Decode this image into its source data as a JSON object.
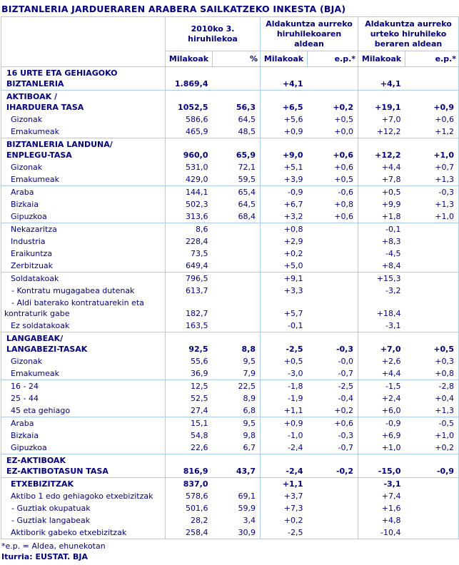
{
  "title": "BIZTANLERIA JARDUERAREN ARABERA SAILKATZEKO INKESTA (BJA)",
  "colors": {
    "text_navy": "#000080",
    "grid_light_blue": "#aaccee",
    "background": "#ffffff"
  },
  "header": {
    "groups": [
      {
        "label": "2010ko 3.\nhiruhilekoa"
      },
      {
        "label": "Aldakuntza aurreko\nhiruhilekoaren aldean"
      },
      {
        "label": "Aldakuntza aurreko\nurteko hiruhileko\nberaren aldean"
      }
    ],
    "subcols": [
      "Milakoak",
      "%",
      "Milakoak",
      "e.p.*",
      "Milakoak",
      "e.p.*"
    ]
  },
  "rows": [
    {
      "label": "16 URTE ETA GEHIAGOKO\nBIZTANLERIA",
      "cls": "section",
      "sep": true,
      "values": [
        "1.869,4",
        "",
        "+4,1",
        "",
        "+4,1",
        ""
      ]
    },
    {
      "label": "AKTIBOAK /\nIHARDUERA TASA",
      "cls": "section",
      "sep": false,
      "values": [
        "1052,5",
        "56,3",
        "+6,5",
        "+0,2",
        "+19,1",
        "+0,9"
      ]
    },
    {
      "label": "Gizonak",
      "cls": "sub",
      "sep": false,
      "values": [
        "586,6",
        "64,5",
        "+5,6",
        "+0,5",
        "+7,0",
        "+0,6"
      ]
    },
    {
      "label": "Emakumeak",
      "cls": "sub",
      "sep": true,
      "values": [
        "465,9",
        "48,5",
        "+0,9",
        "+0,0",
        "+12,2",
        "+1,2"
      ]
    },
    {
      "label": "BIZTANLERIA LANDUNA/\nENPLEGU-TASA",
      "cls": "section",
      "sep": false,
      "values": [
        "960,0",
        "65,9",
        "+9,0",
        "+0,6",
        "+12,2",
        "+1,0"
      ]
    },
    {
      "label": "Gizonak",
      "cls": "sub",
      "sep": false,
      "values": [
        "531,0",
        "72,1",
        "+5,1",
        "+0,6",
        "+4,4",
        "+0,7"
      ]
    },
    {
      "label": "Emakumeak",
      "cls": "sub",
      "sep": true,
      "values": [
        "429,0",
        "59,5",
        "+3,9",
        "+0,5",
        "+7,8",
        "+1,3"
      ]
    },
    {
      "label": "Araba",
      "cls": "sub",
      "sep": false,
      "values": [
        "144,1",
        "65,4",
        "-0,9",
        "-0,6",
        "+0,5",
        "-0,3"
      ]
    },
    {
      "label": "Bizkaia",
      "cls": "sub",
      "sep": false,
      "values": [
        "502,3",
        "64,5",
        "+6,7",
        "+0,8",
        "+9,9",
        "+1,3"
      ]
    },
    {
      "label": "Gipuzkoa",
      "cls": "sub",
      "sep": true,
      "values": [
        "313,6",
        "68,4",
        "+3,2",
        "+0,6",
        "+1,8",
        "+1,0"
      ]
    },
    {
      "label": "Nekazaritza",
      "cls": "sub",
      "sep": false,
      "values": [
        "8,6",
        "",
        "+0,8",
        "",
        "-0,1",
        ""
      ]
    },
    {
      "label": "Industria",
      "cls": "sub",
      "sep": false,
      "values": [
        "228,4",
        "",
        "+2,9",
        "",
        "+8,3",
        ""
      ]
    },
    {
      "label": "Eraikuntza",
      "cls": "sub",
      "sep": false,
      "values": [
        "73,5",
        "",
        "+0,2",
        "",
        "-4,5",
        ""
      ]
    },
    {
      "label": "Zerbitzuak",
      "cls": "sub",
      "sep": true,
      "values": [
        "649,4",
        "",
        "+5,0",
        "",
        "+8,4",
        ""
      ]
    },
    {
      "label": "Soldatakoak",
      "cls": "sub",
      "sep": false,
      "values": [
        "796,5",
        "",
        "+9,1",
        "",
        "+15,3",
        ""
      ]
    },
    {
      "label": "- Kontratu mugagabea dutenak",
      "cls": "dash",
      "sep": false,
      "values": [
        "613,7",
        "",
        "+3,3",
        "",
        "-3,2",
        ""
      ]
    },
    {
      "label": "- Aldi baterako kontratuarekin eta\nkontraturik gabe",
      "cls": "dash",
      "sep": false,
      "values": [
        "182,7",
        "",
        "+5,7",
        "",
        "+18,4",
        ""
      ]
    },
    {
      "label": "Ez soldatakoak",
      "cls": "sub",
      "sep": true,
      "values": [
        "163,5",
        "",
        "-0,1",
        "",
        "-3,1",
        ""
      ]
    },
    {
      "label": "LANGABEAK/\nLANGABEZI-TASAK",
      "cls": "section",
      "sep": false,
      "values": [
        "92,5",
        "8,8",
        "-2,5",
        "-0,3",
        "+7,0",
        "+0,5"
      ]
    },
    {
      "label": "Gizonak",
      "cls": "sub",
      "sep": false,
      "values": [
        "55,6",
        "9,5",
        "+0,5",
        "-0,0",
        "+2,6",
        "+0,3"
      ]
    },
    {
      "label": "Emakumeak",
      "cls": "sub",
      "sep": true,
      "values": [
        "36,9",
        "7,9",
        "-3,0",
        "-0,7",
        "+4,4",
        "+0,8"
      ]
    },
    {
      "label": "16 - 24",
      "cls": "sub",
      "sep": false,
      "values": [
        "12,5",
        "22,5",
        "-1,8",
        "-2,5",
        "-1,5",
        "-2,8"
      ]
    },
    {
      "label": "25 - 44",
      "cls": "sub",
      "sep": false,
      "values": [
        "52,5",
        "8,9",
        "-1,9",
        "-0,4",
        "+2,4",
        "+0,4"
      ]
    },
    {
      "label": "45 eta gehiago",
      "cls": "sub",
      "sep": true,
      "values": [
        "27,4",
        "6,8",
        "+1,1",
        "+0,2",
        "+6,0",
        "+1,3"
      ]
    },
    {
      "label": "Araba",
      "cls": "sub",
      "sep": false,
      "values": [
        "15,1",
        "9,5",
        "+0,9",
        "+0,6",
        "-0,9",
        "-0,5"
      ]
    },
    {
      "label": "Bizkaia",
      "cls": "sub",
      "sep": false,
      "values": [
        "54,8",
        "9,8",
        "-1,0",
        "-0,3",
        "+6,9",
        "+1,0"
      ]
    },
    {
      "label": "Gipuzkoa",
      "cls": "sub",
      "sep": true,
      "values": [
        "22,6",
        "6,7",
        "-2,4",
        "-0,7",
        "+1,0",
        "+0,2"
      ]
    },
    {
      "label": "EZ-AKTIBOAK\nEZ-AKTIBOTASUN TASA",
      "cls": "section",
      "sep": true,
      "values": [
        "816,9",
        "43,7",
        "-2,4",
        "-0,2",
        "-15,0",
        "-0,9"
      ]
    },
    {
      "label": "ETXEBIZITZAK",
      "cls": "subbold",
      "sep": false,
      "values": [
        "837,0",
        "",
        "+1,1",
        "",
        "-3,1",
        ""
      ]
    },
    {
      "label": "Aktibo 1 edo gehiagoko etxebizitzak",
      "cls": "sub",
      "sep": false,
      "values": [
        "578,6",
        "69,1",
        "+3,7",
        "",
        "+7,4",
        ""
      ]
    },
    {
      "label": "- Guztiak okupatuak",
      "cls": "dash",
      "sep": false,
      "values": [
        "501,6",
        "59,9",
        "+7,3",
        "",
        "+1,6",
        ""
      ]
    },
    {
      "label": "- Guztiak langabeak",
      "cls": "dash",
      "sep": false,
      "values": [
        "28,2",
        "3,4",
        "+0,2",
        "",
        "+4,8",
        ""
      ]
    },
    {
      "label": "Aktiborik gabeko etxebizitzak",
      "cls": "sub",
      "sep": false,
      "values": [
        "258,4",
        "30,9",
        "-2,5",
        "",
        "-10,4",
        ""
      ]
    }
  ],
  "footnotes": {
    "note": "*e.p. = Aldea, ehunekotan",
    "source": "Iturria: EUSTAT. BJA"
  }
}
